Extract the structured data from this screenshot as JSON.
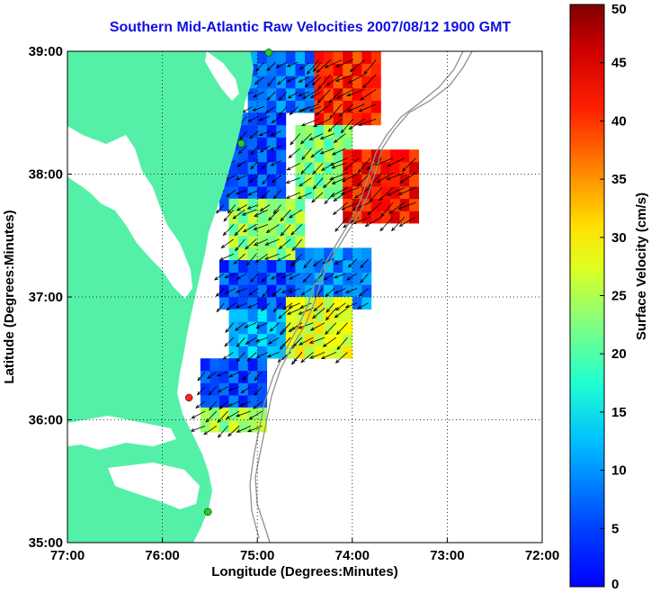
{
  "title": "Southern Mid-Atlantic Raw Velocities 2007/08/12 1900 GMT",
  "map": {
    "xlabel": "Longitude (Degrees:Minutes)",
    "ylabel": "Latitude (Degrees:Minutes)",
    "lon_range": [
      -77,
      -72
    ],
    "lat_range": [
      35,
      39
    ],
    "x_ticks": [
      {
        "value": -77,
        "label": "77:00"
      },
      {
        "value": -76,
        "label": "76:00"
      },
      {
        "value": -75,
        "label": "75:00"
      },
      {
        "value": -74,
        "label": "74:00"
      },
      {
        "value": -73,
        "label": "73:00"
      },
      {
        "value": -72,
        "label": "72:00"
      }
    ],
    "y_ticks": [
      {
        "value": 35,
        "label": "35:00"
      },
      {
        "value": 36,
        "label": "36:00"
      },
      {
        "value": 37,
        "label": "37:00"
      },
      {
        "value": 38,
        "label": "38:00"
      },
      {
        "value": 39,
        "label": "39:00"
      }
    ],
    "grid": "dotted",
    "land_color": "#55f0a8",
    "stations": [
      {
        "lon": -74.88,
        "lat": 38.99,
        "color": "#22cc22"
      },
      {
        "lon": -75.17,
        "lat": 38.25,
        "color": "#22cc22"
      },
      {
        "lon": -75.72,
        "lat": 36.18,
        "color": "#ff2222"
      },
      {
        "lon": -75.52,
        "lat": 35.25,
        "color": "#22cc22"
      }
    ]
  },
  "colorbar": {
    "label": "Surface Velocity (cm/s)",
    "range": [
      0,
      50
    ],
    "ticks": [
      {
        "value": 0,
        "label": "0"
      },
      {
        "value": 5,
        "label": "5"
      },
      {
        "value": 10,
        "label": "10"
      },
      {
        "value": 15,
        "label": "15"
      },
      {
        "value": 20,
        "label": "20"
      },
      {
        "value": 25,
        "label": "25"
      },
      {
        "value": 30,
        "label": "30"
      },
      {
        "value": 35,
        "label": "35"
      },
      {
        "value": 40,
        "label": "40"
      },
      {
        "value": 45,
        "label": "45"
      },
      {
        "value": 50,
        "label": "50"
      }
    ],
    "colormap": "jet"
  },
  "chart_data": {
    "type": "heatmap",
    "title": "Southern Mid-Atlantic Raw Velocities 2007/08/12 1900 GMT",
    "xlabel": "Longitude (Degrees:Minutes)",
    "ylabel": "Latitude (Degrees:Minutes)",
    "xlim": [
      -77,
      -72
    ],
    "ylim": [
      35,
      39
    ],
    "value_label": "Surface Velocity (cm/s)",
    "value_range": [
      0,
      50
    ],
    "regions": [
      {
        "lon_range": [
          -75.1,
          -74.3
        ],
        "lat_range": [
          38.5,
          39.0
        ],
        "speed": 12
      },
      {
        "lon_range": [
          -74.4,
          -73.7
        ],
        "lat_range": [
          38.4,
          39.0
        ],
        "speed": 42
      },
      {
        "lon_range": [
          -75.4,
          -74.7
        ],
        "lat_range": [
          37.7,
          38.5
        ],
        "speed": 10
      },
      {
        "lon_range": [
          -74.6,
          -74.0
        ],
        "lat_range": [
          37.8,
          38.4
        ],
        "speed": 25
      },
      {
        "lon_range": [
          -74.1,
          -73.3
        ],
        "lat_range": [
          37.6,
          38.2
        ],
        "speed": 43
      },
      {
        "lon_range": [
          -75.3,
          -74.5
        ],
        "lat_range": [
          37.3,
          37.8
        ],
        "speed": 26
      },
      {
        "lon_range": [
          -75.4,
          -74.6
        ],
        "lat_range": [
          36.9,
          37.3
        ],
        "speed": 10
      },
      {
        "lon_range": [
          -74.6,
          -73.8
        ],
        "lat_range": [
          36.9,
          37.4
        ],
        "speed": 13
      },
      {
        "lon_range": [
          -75.3,
          -74.5
        ],
        "lat_range": [
          36.5,
          36.9
        ],
        "speed": 15
      },
      {
        "lon_range": [
          -74.7,
          -74.0
        ],
        "lat_range": [
          36.5,
          37.0
        ],
        "speed": 30
      },
      {
        "lon_range": [
          -75.6,
          -74.9
        ],
        "lat_range": [
          36.1,
          36.5
        ],
        "speed": 10
      },
      {
        "lon_range": [
          -75.6,
          -74.9
        ],
        "lat_range": [
          35.9,
          36.1
        ],
        "speed": 27
      }
    ],
    "vector_direction": "predominantly southwestward, nearly uniform"
  }
}
